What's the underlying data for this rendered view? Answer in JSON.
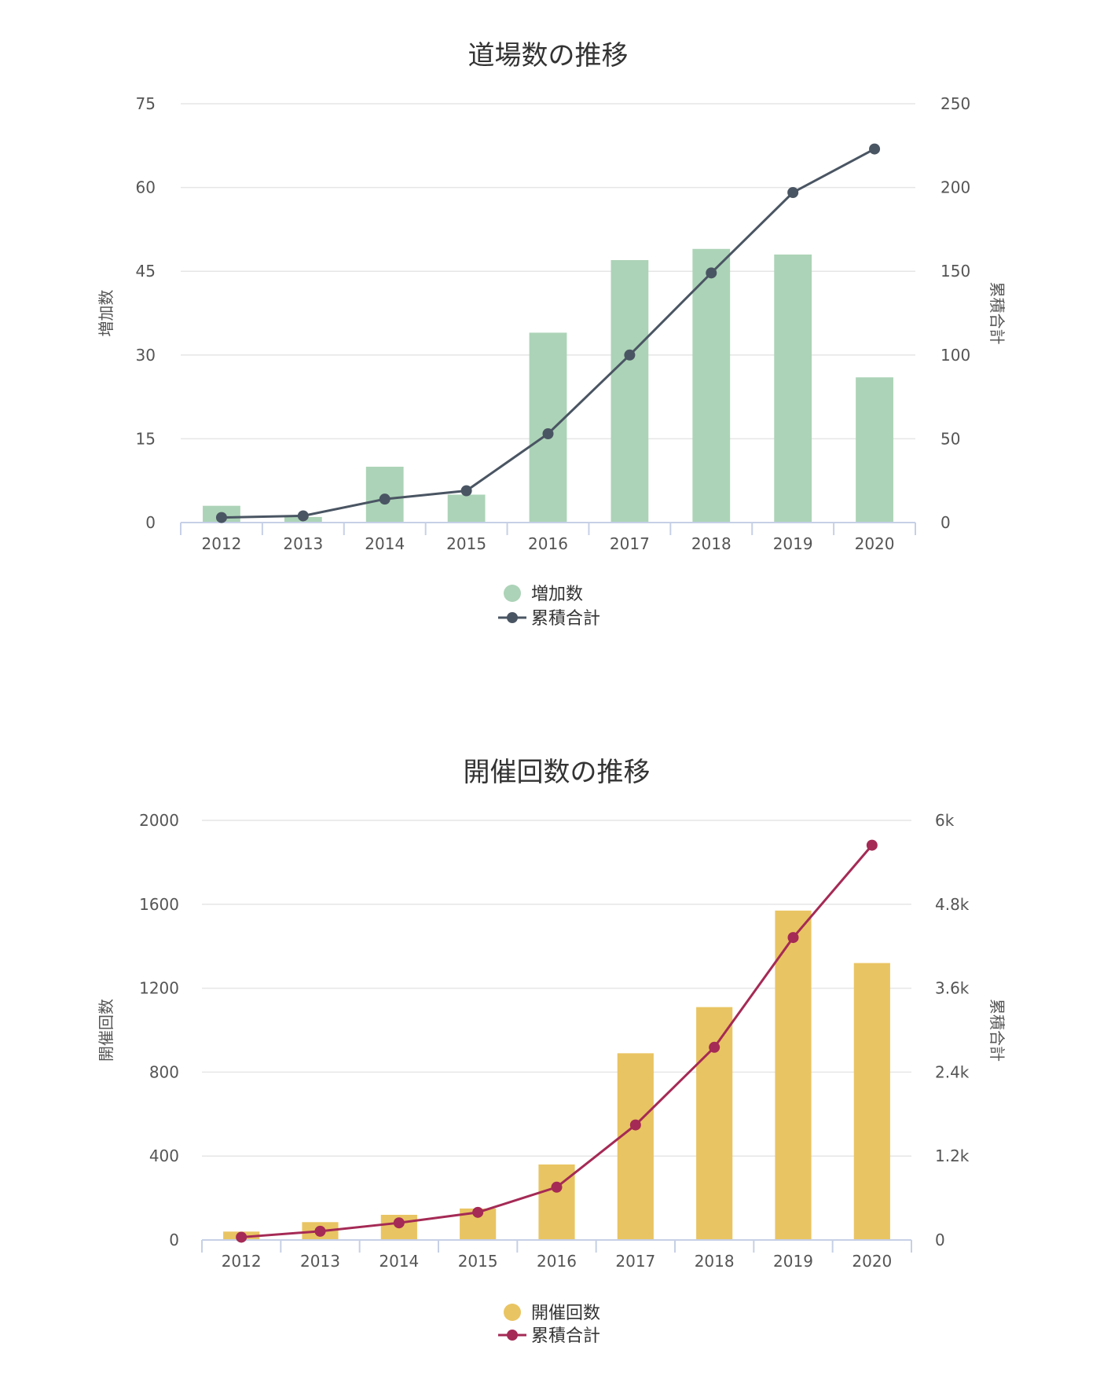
{
  "chart_data": [
    {
      "type": "bar",
      "title": "道場数の推移",
      "categories": [
        "2012",
        "2013",
        "2014",
        "2015",
        "2016",
        "2017",
        "2018",
        "2019",
        "2020"
      ],
      "bar_series": {
        "name": "増加数",
        "values": [
          3,
          1,
          10,
          5,
          34,
          47,
          49,
          48,
          26
        ],
        "color": "#acd3b7"
      },
      "line_series": {
        "name": "累積合計",
        "values": [
          3,
          4,
          14,
          19,
          53,
          100,
          149,
          197,
          223
        ],
        "color": "#4a5563"
      },
      "ylabel_left": "増加数",
      "ylabel_right": "累積合計",
      "ylim_left": [
        0,
        75
      ],
      "ylim_right": [
        0,
        250
      ],
      "yticks_left": [
        "75",
        "60",
        "45",
        "30",
        "15",
        "0"
      ],
      "yticks_right": [
        "250",
        "200",
        "150",
        "100",
        "50",
        "0"
      ],
      "grid": true,
      "legend_position": "bottom-center"
    },
    {
      "type": "bar",
      "title": "開催回数の推移",
      "categories": [
        "2012",
        "2013",
        "2014",
        "2015",
        "2016",
        "2017",
        "2018",
        "2019",
        "2020"
      ],
      "bar_series": {
        "name": "開催回数",
        "values": [
          40,
          85,
          120,
          150,
          360,
          890,
          1110,
          1570,
          1320
        ],
        "color": "#e9c462"
      },
      "line_series": {
        "name": "累積合計",
        "values": [
          40,
          125,
          245,
          395,
          755,
          1645,
          2755,
          4325,
          5645
        ],
        "color": "#a52a55"
      },
      "ylabel_left": "開催回数",
      "ylabel_right": "累積合計",
      "ylim_left": [
        0,
        2000
      ],
      "ylim_right": [
        0,
        6000
      ],
      "yticks_left": [
        "2000",
        "1600",
        "1200",
        "800",
        "400",
        "0"
      ],
      "yticks_right": [
        "6k",
        "4.8k",
        "3.6k",
        "2.4k",
        "1.2k",
        "0"
      ],
      "grid": true,
      "legend_position": "bottom-center"
    }
  ]
}
